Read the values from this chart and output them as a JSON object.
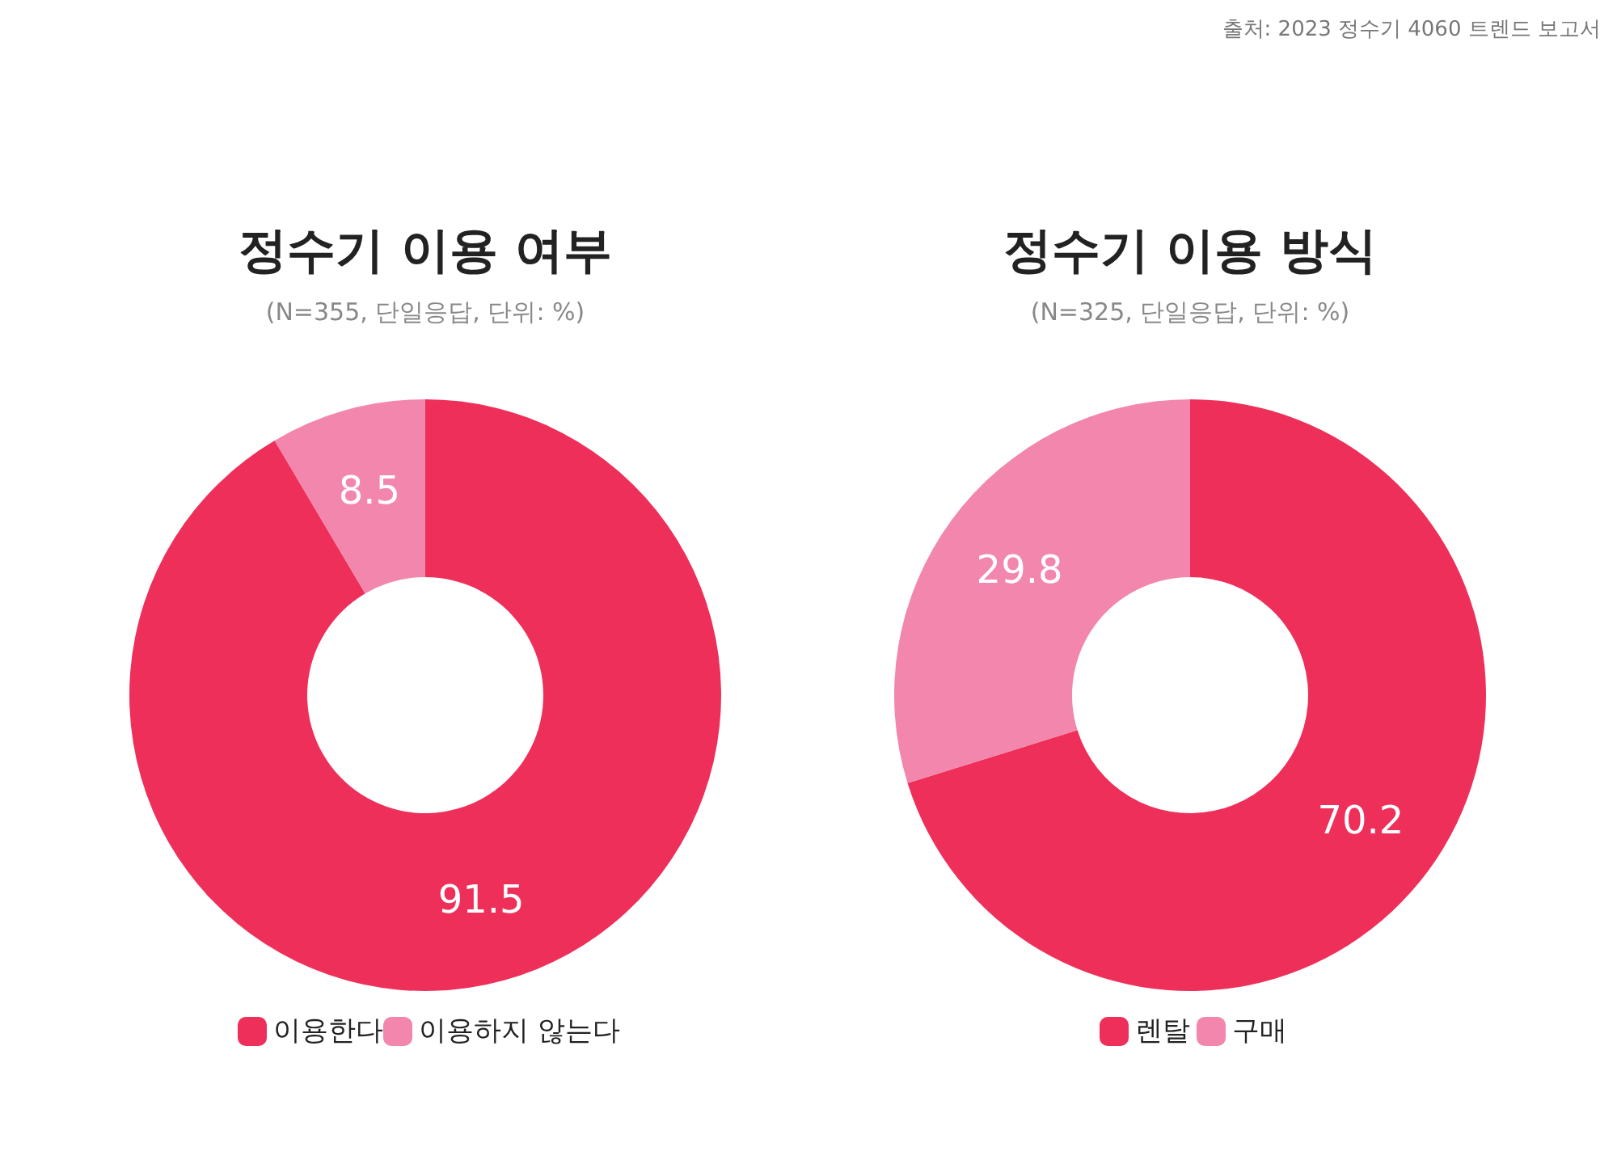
{
  "chart_data": [
    {
      "type": "donut",
      "title": "정수기 이용 여부",
      "subtitle": "(N=355, 단일응답, 단위: %)",
      "categories": [
        "이용한다",
        "이용하지 않는다"
      ],
      "values": [
        91.5,
        8.5
      ],
      "colors": [
        "#ee2f5a",
        "#f386ad"
      ],
      "data_labels": true,
      "legend": "bottom",
      "annotations": [
        "출처: 2023 정수기 4060 트렌드 보고서"
      ]
    },
    {
      "type": "donut",
      "title": "정수기 이용 방식",
      "subtitle": "(N=325, 단일응답, 단위: %)",
      "categories": [
        "렌탈",
        "구매"
      ],
      "values": [
        70.2,
        29.8
      ],
      "colors": [
        "#ee2f5a",
        "#f386ad"
      ],
      "data_labels": true,
      "legend": "bottom"
    }
  ]
}
